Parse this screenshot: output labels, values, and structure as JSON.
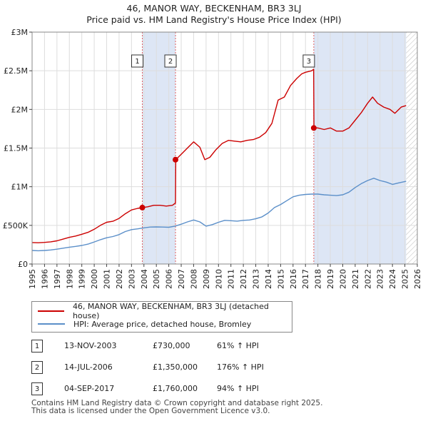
{
  "chart_data": {
    "type": "line",
    "title": "46, MANOR WAY, BECKENHAM, BR3 3LJ",
    "subtitle": "Price paid vs. HM Land Registry's House Price Index (HPI)",
    "xlim": [
      1995,
      2026
    ],
    "ylim": [
      0,
      3000000
    ],
    "x_ticks": [
      1995,
      1996,
      1997,
      1998,
      1999,
      2000,
      2001,
      2002,
      2003,
      2004,
      2005,
      2006,
      2007,
      2008,
      2009,
      2010,
      2011,
      2012,
      2013,
      2014,
      2015,
      2016,
      2017,
      2018,
      2019,
      2020,
      2021,
      2022,
      2023,
      2024,
      2025,
      2026
    ],
    "y_ticks": [
      {
        "value": 0,
        "label": "£0"
      },
      {
        "value": 500000,
        "label": "£500K"
      },
      {
        "value": 1000000,
        "label": "£1M"
      },
      {
        "value": 1500000,
        "label": "£1.5M"
      },
      {
        "value": 2000000,
        "label": "£2M"
      },
      {
        "value": 2500000,
        "label": "£2.5M"
      },
      {
        "value": 3000000,
        "label": "£3M"
      }
    ],
    "grid": true,
    "colors": {
      "property": "#cc0000",
      "hpi": "#5b8fc9",
      "shade": "#dde6f5",
      "grid": "#dddddd",
      "hatch": "#bbbbbb"
    },
    "future_from": 2025.1,
    "shaded_periods": [
      [
        2003.87,
        2006.54
      ],
      [
        2017.67,
        2025.1
      ]
    ],
    "series": [
      {
        "name": "46, MANOR WAY, BECKENHAM, BR3 3LJ (detached house)",
        "key": "property",
        "points": [
          [
            1995.0,
            278000
          ],
          [
            1995.5,
            275000
          ],
          [
            1996.0,
            280000
          ],
          [
            1996.5,
            287000
          ],
          [
            1997.0,
            300000
          ],
          [
            1997.5,
            322000
          ],
          [
            1998.0,
            345000
          ],
          [
            1998.5,
            362000
          ],
          [
            1999.0,
            385000
          ],
          [
            1999.5,
            410000
          ],
          [
            2000.0,
            450000
          ],
          [
            2000.5,
            500000
          ],
          [
            2001.0,
            540000
          ],
          [
            2001.5,
            553000
          ],
          [
            2002.0,
            590000
          ],
          [
            2002.5,
            650000
          ],
          [
            2003.0,
            700000
          ],
          [
            2003.5,
            720000
          ],
          [
            2003.87,
            730000
          ],
          [
            2004.3,
            740000
          ],
          [
            2004.8,
            760000
          ],
          [
            2005.3,
            760000
          ],
          [
            2005.8,
            750000
          ],
          [
            2006.3,
            760000
          ],
          [
            2006.54,
            790000
          ],
          [
            2006.56,
            1350000
          ],
          [
            2007.0,
            1420000
          ],
          [
            2007.5,
            1500000
          ],
          [
            2008.0,
            1580000
          ],
          [
            2008.5,
            1510000
          ],
          [
            2008.9,
            1350000
          ],
          [
            2009.3,
            1380000
          ],
          [
            2009.8,
            1480000
          ],
          [
            2010.3,
            1560000
          ],
          [
            2010.8,
            1600000
          ],
          [
            2011.3,
            1590000
          ],
          [
            2011.8,
            1580000
          ],
          [
            2012.3,
            1600000
          ],
          [
            2012.8,
            1610000
          ],
          [
            2013.3,
            1640000
          ],
          [
            2013.8,
            1700000
          ],
          [
            2014.3,
            1820000
          ],
          [
            2014.8,
            2120000
          ],
          [
            2015.3,
            2160000
          ],
          [
            2015.8,
            2310000
          ],
          [
            2016.3,
            2400000
          ],
          [
            2016.7,
            2460000
          ],
          [
            2017.0,
            2480000
          ],
          [
            2017.5,
            2500000
          ],
          [
            2017.66,
            2520000
          ],
          [
            2017.68,
            1760000
          ],
          [
            2018.0,
            1760000
          ],
          [
            2018.5,
            1740000
          ],
          [
            2019.0,
            1760000
          ],
          [
            2019.5,
            1720000
          ],
          [
            2020.0,
            1720000
          ],
          [
            2020.5,
            1760000
          ],
          [
            2021.0,
            1860000
          ],
          [
            2021.5,
            1960000
          ],
          [
            2022.0,
            2080000
          ],
          [
            2022.4,
            2160000
          ],
          [
            2022.8,
            2080000
          ],
          [
            2023.3,
            2030000
          ],
          [
            2023.8,
            2000000
          ],
          [
            2024.2,
            1950000
          ],
          [
            2024.7,
            2030000
          ],
          [
            2025.1,
            2050000
          ]
        ]
      },
      {
        "name": "HPI: Average price, detached house, Bromley",
        "key": "hpi",
        "points": [
          [
            1995.0,
            175000
          ],
          [
            1995.5,
            172000
          ],
          [
            1996.0,
            175000
          ],
          [
            1996.5,
            182000
          ],
          [
            1997.0,
            192000
          ],
          [
            1997.5,
            205000
          ],
          [
            1998.0,
            218000
          ],
          [
            1998.5,
            228000
          ],
          [
            1999.0,
            240000
          ],
          [
            1999.5,
            258000
          ],
          [
            2000.0,
            285000
          ],
          [
            2000.5,
            315000
          ],
          [
            2001.0,
            340000
          ],
          [
            2001.5,
            355000
          ],
          [
            2002.0,
            380000
          ],
          [
            2002.5,
            420000
          ],
          [
            2003.0,
            445000
          ],
          [
            2003.5,
            455000
          ],
          [
            2004.0,
            468000
          ],
          [
            2004.5,
            478000
          ],
          [
            2005.0,
            480000
          ],
          [
            2005.5,
            478000
          ],
          [
            2006.0,
            475000
          ],
          [
            2006.5,
            490000
          ],
          [
            2007.0,
            515000
          ],
          [
            2007.5,
            545000
          ],
          [
            2008.0,
            570000
          ],
          [
            2008.5,
            545000
          ],
          [
            2009.0,
            490000
          ],
          [
            2009.5,
            510000
          ],
          [
            2010.0,
            540000
          ],
          [
            2010.5,
            565000
          ],
          [
            2011.0,
            560000
          ],
          [
            2011.5,
            555000
          ],
          [
            2012.0,
            565000
          ],
          [
            2012.5,
            570000
          ],
          [
            2013.0,
            585000
          ],
          [
            2013.5,
            610000
          ],
          [
            2014.0,
            660000
          ],
          [
            2014.5,
            730000
          ],
          [
            2015.0,
            770000
          ],
          [
            2015.5,
            820000
          ],
          [
            2016.0,
            870000
          ],
          [
            2016.5,
            890000
          ],
          [
            2017.0,
            900000
          ],
          [
            2017.5,
            905000
          ],
          [
            2018.0,
            905000
          ],
          [
            2018.5,
            895000
          ],
          [
            2019.0,
            890000
          ],
          [
            2019.5,
            885000
          ],
          [
            2020.0,
            895000
          ],
          [
            2020.5,
            930000
          ],
          [
            2021.0,
            990000
          ],
          [
            2021.5,
            1040000
          ],
          [
            2022.0,
            1080000
          ],
          [
            2022.5,
            1110000
          ],
          [
            2023.0,
            1080000
          ],
          [
            2023.5,
            1060000
          ],
          [
            2024.0,
            1030000
          ],
          [
            2024.5,
            1050000
          ],
          [
            2025.1,
            1070000
          ]
        ]
      }
    ],
    "sales": [
      {
        "num": "1",
        "year": 2003.87,
        "price": 730000
      },
      {
        "num": "2",
        "year": 2006.54,
        "price": 1350000
      },
      {
        "num": "3",
        "year": 2017.67,
        "price": 1760000
      }
    ]
  },
  "legend": {
    "property_label": "46, MANOR WAY, BECKENHAM, BR3 3LJ (detached house)",
    "hpi_label": "HPI: Average price, detached house, Bromley"
  },
  "sales_table": [
    {
      "num": "1",
      "date": "13-NOV-2003",
      "price": "£730,000",
      "hpi": "61% ↑ HPI"
    },
    {
      "num": "2",
      "date": "14-JUL-2006",
      "price": "£1,350,000",
      "hpi": "176% ↑ HPI"
    },
    {
      "num": "3",
      "date": "04-SEP-2017",
      "price": "£1,760,000",
      "hpi": "94% ↑ HPI"
    }
  ],
  "footer": {
    "line1": "Contains HM Land Registry data © Crown copyright and database right 2025.",
    "line2": "This data is licensed under the Open Government Licence v3.0."
  }
}
